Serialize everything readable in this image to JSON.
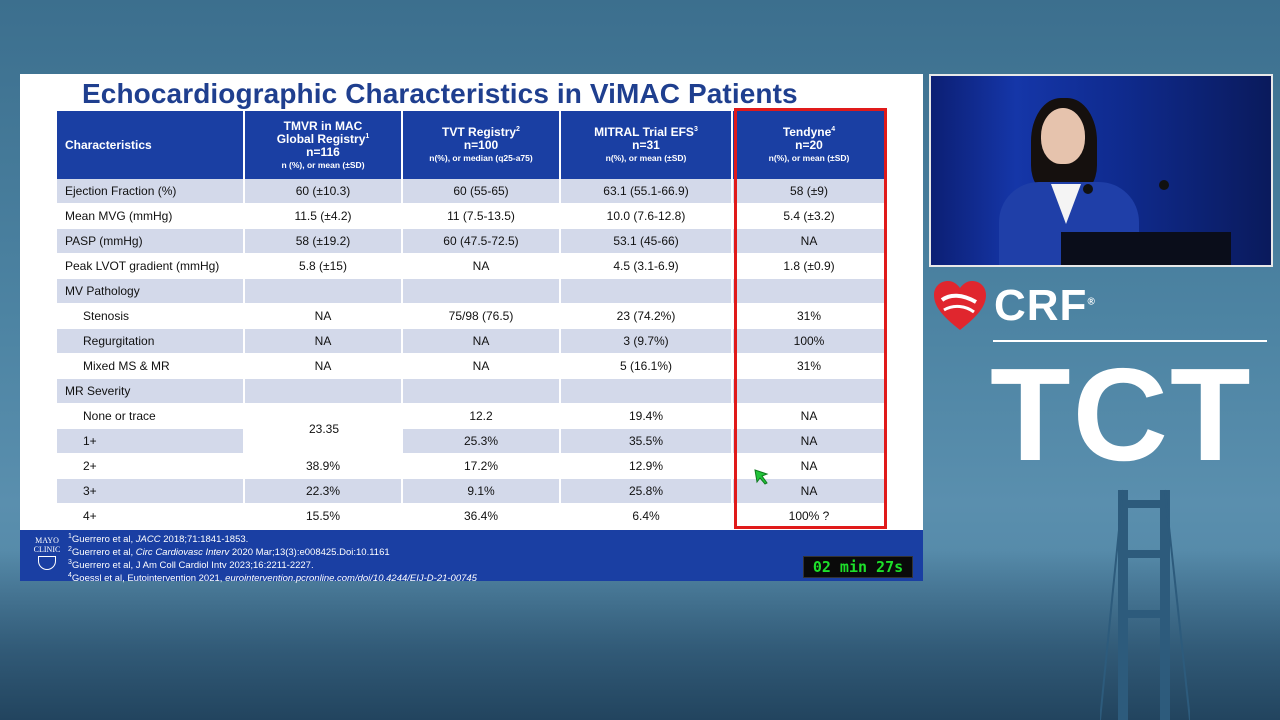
{
  "slide": {
    "title": "Echocardiographic Characteristics in ViMAC Patients",
    "headers": [
      {
        "line1": "Characteristics",
        "line2": "",
        "sup": "",
        "sub": ""
      },
      {
        "line1": "TMVR in MAC",
        "line2a": "Global Registry",
        "sup": "1",
        "line3": "n=116",
        "sub": "n (%), or mean (±SD)"
      },
      {
        "line1": "TVT Registry",
        "sup": "2",
        "line3": "n=100",
        "sub": "n(%), or median (q25-a75)"
      },
      {
        "line1": "MITRAL Trial EFS",
        "sup": "3",
        "line3": "n=31",
        "sub": "n(%), or mean (±SD)"
      },
      {
        "line1": "Tendyne",
        "sup": "4",
        "line3": "n=20",
        "sub": "n(%), or mean (±SD)"
      }
    ],
    "rows": [
      {
        "label": "Ejection Fraction (%)",
        "c1": "60 (±10.3)",
        "c2": "60 (55-65)",
        "c3": "63.1 (55.1-66.9)",
        "c4": "58 (±9)"
      },
      {
        "label": "Mean MVG (mmHg)",
        "c1": "11.5 (±4.2)",
        "c2": "11 (7.5-13.5)",
        "c3": "10.0 (7.6-12.8)",
        "c4": "5.4 (±3.2)"
      },
      {
        "label": "PASP (mmHg)",
        "c1": "58 (±19.2)",
        "c2": "60 (47.5-72.5)",
        "c3": "53.1 (45-66)",
        "c4": "NA"
      },
      {
        "label": "Peak LVOT gradient (mmHg)",
        "c1": "5.8 (±15)",
        "c2": "NA",
        "c3": "4.5 (3.1-6.9)",
        "c4": "1.8 (±0.9)"
      },
      {
        "label": "MV Pathology",
        "c1": "",
        "c2": "",
        "c3": "",
        "c4": ""
      },
      {
        "label": "Stenosis",
        "c1": "NA",
        "c2": "75/98 (76.5)",
        "c3": "23 (74.2%)",
        "c4": "31%"
      },
      {
        "label": "Regurgitation",
        "c1": "NA",
        "c2": "NA",
        "c3": "3 (9.7%)",
        "c4": "100%"
      },
      {
        "label": "Mixed MS & MR",
        "c1": "NA",
        "c2": "NA",
        "c3": "5 (16.1%)",
        "c4": "31%"
      },
      {
        "label": "MR Severity",
        "c1": "",
        "c2": "",
        "c3": "",
        "c4": ""
      },
      {
        "label": "None or trace",
        "c1": "",
        "c2": "12.2",
        "c3": "19.4%",
        "c4": "NA"
      },
      {
        "label": "1+",
        "c1": "",
        "c2": "25.3%",
        "c3": "35.5%",
        "c4": "NA"
      },
      {
        "label": "2+",
        "c1": "38.9%",
        "c2": "17.2%",
        "c3": "12.9%",
        "c4": "NA"
      },
      {
        "label": "3+",
        "c1": "22.3%",
        "c2": "9.1%",
        "c3": "25.8%",
        "c4": "NA"
      },
      {
        "label": "4+",
        "c1": "15.5%",
        "c2": "36.4%",
        "c3": "6.4%",
        "c4": "100% ?"
      }
    ],
    "merged_value": "23.35",
    "references": [
      {
        "num": "1",
        "text_a": "Guerrero  et al, ",
        "ital": "JACC",
        "text_b": " 2018;71:1841-1853."
      },
      {
        "num": "2",
        "text_a": "Guerrero et al, ",
        "ital": "Circ Cardiovasc Interv",
        "text_b": " 2020 Mar;13(3):e008425.Doi:10.1161"
      },
      {
        "num": "3",
        "text_a": "Guerrero et al, J Am Coll Cardiol Intv 2023;16:2211-2227.",
        "ital": "",
        "text_b": ""
      },
      {
        "num": "4",
        "text_a": "Goessl et al, Eutointervention 2021, ",
        "ital": "eurointervention.pcronline.com/doi/10.4244/EIJ-D-21-00745",
        "text_b": ""
      }
    ],
    "logo_text": [
      "MAYO",
      "CLINIC"
    ],
    "timer": "02 min 27s"
  },
  "branding": {
    "crf": "CRF",
    "crf_mark": "®",
    "tct": "TCT"
  },
  "colors": {
    "header_blue": "#1a3fa3",
    "title_blue": "#1f3f8f",
    "highlight_red": "#e01a1a",
    "timer_green": "#1de02a",
    "crf_red": "#e0262e"
  }
}
